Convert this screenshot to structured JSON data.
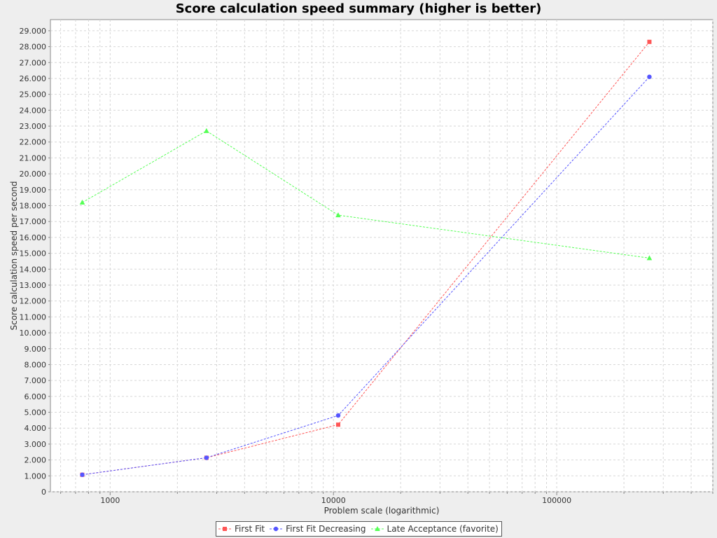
{
  "chart_data": {
    "type": "line",
    "title": "Score calculation speed summary (higher is better)",
    "xlabel": "Problem scale (logarithmic)",
    "ylabel": "Score calculation speed per second",
    "xscale": "log",
    "xlim": [
      540,
      500000
    ],
    "ylim": [
      0,
      29700
    ],
    "xticks": [
      1000,
      10000,
      100000
    ],
    "xtick_labels": [
      "1000",
      "10000",
      "100000"
    ],
    "yticks": [
      0,
      1000,
      2000,
      3000,
      4000,
      5000,
      6000,
      7000,
      8000,
      9000,
      10000,
      11000,
      12000,
      13000,
      14000,
      15000,
      16000,
      17000,
      18000,
      19000,
      20000,
      21000,
      22000,
      23000,
      24000,
      25000,
      26000,
      27000,
      28000,
      29000
    ],
    "ytick_labels": [
      "0",
      "1.000",
      "2.000",
      "3.000",
      "4.000",
      "5.000",
      "6.000",
      "7.000",
      "8.000",
      "9.000",
      "10.000",
      "11.000",
      "12.000",
      "13.000",
      "14.000",
      "15.000",
      "16.000",
      "17.000",
      "18.000",
      "19.000",
      "20.000",
      "21.000",
      "22.000",
      "23.000",
      "24.000",
      "25.000",
      "26.000",
      "27.000",
      "28.000",
      "29.000"
    ],
    "grid": true,
    "legend_position": "bottom",
    "series": [
      {
        "name": "First Fit",
        "color": "#ff5555",
        "marker": "square",
        "x": [
          750,
          2700,
          10500,
          260000
        ],
        "y": [
          1070,
          2140,
          4220,
          28300
        ]
      },
      {
        "name": "First Fit Decreasing",
        "color": "#5555ff",
        "marker": "circle",
        "x": [
          750,
          2700,
          10500,
          260000
        ],
        "y": [
          1070,
          2140,
          4800,
          26100
        ]
      },
      {
        "name": "Late Acceptance (favorite)",
        "color": "#55ff55",
        "marker": "triangle",
        "x": [
          750,
          2700,
          10500,
          260000
        ],
        "y": [
          18200,
          22700,
          17400,
          14700
        ]
      }
    ]
  }
}
